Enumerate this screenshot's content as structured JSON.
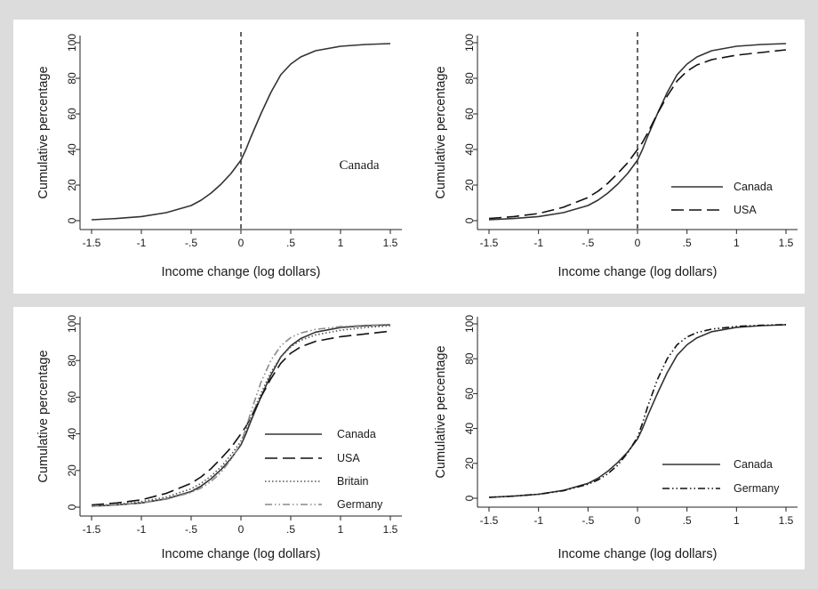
{
  "figure": {
    "background": "#dcdcdc",
    "plot_background": "#ffffff"
  },
  "chart_data": [
    {
      "type": "line",
      "xlabel": "Income change (log dollars)",
      "ylabel": "Cumulative percentage",
      "xlim": [
        -1.5,
        1.5
      ],
      "ylim": [
        0,
        100
      ],
      "xticks": [
        "-1.5",
        "-1",
        "-.5",
        "0",
        ".5",
        "1",
        "1.5"
      ],
      "yticks": [
        "0",
        "20",
        "40",
        "60",
        "80",
        "100"
      ],
      "vline_x": 0,
      "annotation": "Canada",
      "legend": [],
      "series": [
        {
          "name": "Canada",
          "style": "solid",
          "color": "#333333",
          "x": [
            -1.5,
            -1.25,
            -1.0,
            -0.75,
            -0.5,
            -0.4,
            -0.3,
            -0.2,
            -0.1,
            0,
            0.05,
            0.1,
            0.2,
            0.3,
            0.4,
            0.5,
            0.6,
            0.75,
            1.0,
            1.25,
            1.5
          ],
          "y": [
            0.5,
            1.2,
            2.3,
            4.5,
            8.5,
            11.5,
            15.5,
            20.5,
            26.5,
            34,
            40,
            47,
            60,
            72,
            82,
            88,
            92,
            95.5,
            98,
            99,
            99.5
          ]
        }
      ]
    },
    {
      "type": "line",
      "xlabel": "Income change (log dollars)",
      "ylabel": "Cumulative percentage",
      "xlim": [
        -1.5,
        1.5
      ],
      "ylim": [
        0,
        100
      ],
      "xticks": [
        "-1.5",
        "-1",
        "-.5",
        "0",
        ".5",
        "1",
        "1.5"
      ],
      "yticks": [
        "0",
        "20",
        "40",
        "60",
        "80",
        "100"
      ],
      "vline_x": 0,
      "legend": [
        "Canada",
        "USA"
      ],
      "series": [
        {
          "name": "Canada",
          "style": "solid",
          "color": "#333333",
          "x": [
            -1.5,
            -1.25,
            -1.0,
            -0.75,
            -0.5,
            -0.4,
            -0.3,
            -0.2,
            -0.1,
            0,
            0.05,
            0.1,
            0.2,
            0.3,
            0.4,
            0.5,
            0.6,
            0.75,
            1.0,
            1.25,
            1.5
          ],
          "y": [
            0.5,
            1.2,
            2.3,
            4.5,
            8.5,
            11.5,
            15.5,
            20.5,
            26.5,
            34,
            40,
            47,
            60,
            72,
            82,
            88,
            92,
            95.5,
            98,
            99,
            99.5
          ]
        },
        {
          "name": "USA",
          "style": "longdash",
          "color": "#111111",
          "x": [
            -1.5,
            -1.25,
            -1.0,
            -0.75,
            -0.5,
            -0.4,
            -0.3,
            -0.2,
            -0.1,
            0,
            0.05,
            0.1,
            0.2,
            0.3,
            0.4,
            0.5,
            0.6,
            0.75,
            1.0,
            1.25,
            1.5
          ],
          "y": [
            1.2,
            2.3,
            4,
            7.5,
            13,
            16.5,
            21,
            26.5,
            32.5,
            40,
            44,
            49,
            60,
            70,
            78.5,
            84,
            87.5,
            90.5,
            93,
            94.5,
            96
          ]
        }
      ]
    },
    {
      "type": "line",
      "xlabel": "Income change (log dollars)",
      "ylabel": "Cumulative percentage",
      "xlim": [
        -1.5,
        1.5
      ],
      "ylim": [
        0,
        100
      ],
      "xticks": [
        "-1.5",
        "-1",
        "-.5",
        "0",
        ".5",
        "1",
        "1.5"
      ],
      "yticks": [
        "0",
        "20",
        "40",
        "60",
        "80",
        "100"
      ],
      "legend": [
        "Canada",
        "USA",
        "Britain",
        "Germany"
      ],
      "series": [
        {
          "name": "Canada",
          "style": "solid",
          "color": "#333333",
          "x": [
            -1.5,
            -1.25,
            -1.0,
            -0.75,
            -0.5,
            -0.4,
            -0.3,
            -0.2,
            -0.1,
            0,
            0.05,
            0.1,
            0.2,
            0.3,
            0.4,
            0.5,
            0.6,
            0.75,
            1.0,
            1.25,
            1.5
          ],
          "y": [
            0.5,
            1.2,
            2.3,
            4.5,
            8.5,
            11.5,
            15.5,
            20.5,
            26.5,
            34,
            40,
            47,
            60,
            72,
            82,
            88,
            92,
            95.5,
            98,
            99,
            99.5
          ]
        },
        {
          "name": "USA",
          "style": "longdash",
          "color": "#111111",
          "x": [
            -1.5,
            -1.25,
            -1.0,
            -0.75,
            -0.5,
            -0.4,
            -0.3,
            -0.2,
            -0.1,
            0,
            0.05,
            0.1,
            0.2,
            0.3,
            0.4,
            0.5,
            0.6,
            0.75,
            1.0,
            1.25,
            1.5
          ],
          "y": [
            1.2,
            2.3,
            4,
            7.5,
            13,
            16.5,
            21,
            26.5,
            32.5,
            40,
            44,
            49,
            60,
            70,
            78.5,
            84,
            87.5,
            90.5,
            93,
            94.5,
            96
          ]
        },
        {
          "name": "Britain",
          "style": "dotted",
          "color": "#555555",
          "x": [
            -1.5,
            -1.25,
            -1.0,
            -0.75,
            -0.5,
            -0.4,
            -0.3,
            -0.2,
            -0.1,
            0,
            0.05,
            0.1,
            0.2,
            0.3,
            0.4,
            0.5,
            0.6,
            0.75,
            1.0,
            1.25,
            1.5
          ],
          "y": [
            0.8,
            1.6,
            3,
            5.5,
            10,
            13,
            17,
            22,
            28.5,
            36,
            42,
            49,
            62,
            73.5,
            82,
            87.5,
            91,
            94,
            96.5,
            98,
            99
          ]
        },
        {
          "name": "Germany",
          "style": "dashdotdot",
          "color": "#8a8a8a",
          "x": [
            -1.5,
            -1.25,
            -1.0,
            -0.75,
            -0.5,
            -0.4,
            -0.3,
            -0.2,
            -0.1,
            0,
            0.05,
            0.1,
            0.2,
            0.3,
            0.4,
            0.5,
            0.6,
            0.75,
            1.0,
            1.25,
            1.5
          ],
          "y": [
            0.5,
            1.2,
            2.3,
            4.3,
            8,
            10.5,
            14,
            19,
            26,
            35,
            43,
            52,
            68,
            80,
            88,
            92.5,
            95,
            97,
            98.5,
            99.2,
            99.6
          ]
        }
      ]
    },
    {
      "type": "line",
      "xlabel": "Income change (log dollars)",
      "ylabel": "Cumulative percentage",
      "xlim": [
        -1.5,
        1.5
      ],
      "ylim": [
        0,
        100
      ],
      "xticks": [
        "-1.5",
        "-1",
        "-.5",
        "0",
        ".5",
        "1",
        "1.5"
      ],
      "yticks": [
        "0",
        "20",
        "40",
        "60",
        "80",
        "100"
      ],
      "legend": [
        "Canada",
        "Germany"
      ],
      "series": [
        {
          "name": "Canada",
          "style": "solid",
          "color": "#333333",
          "x": [
            -1.5,
            -1.25,
            -1.0,
            -0.75,
            -0.5,
            -0.4,
            -0.3,
            -0.2,
            -0.1,
            0,
            0.05,
            0.1,
            0.2,
            0.3,
            0.4,
            0.5,
            0.6,
            0.75,
            1.0,
            1.25,
            1.5
          ],
          "y": [
            0.5,
            1.2,
            2.3,
            4.5,
            8.5,
            11.5,
            15.5,
            20.5,
            26.5,
            34,
            40,
            47,
            60,
            72,
            82,
            88,
            92,
            95.5,
            98,
            99,
            99.5
          ]
        },
        {
          "name": "Germany",
          "style": "dashdotdot",
          "color": "#111111",
          "x": [
            -1.5,
            -1.25,
            -1.0,
            -0.75,
            -0.5,
            -0.4,
            -0.3,
            -0.2,
            -0.1,
            0,
            0.05,
            0.1,
            0.2,
            0.3,
            0.4,
            0.5,
            0.6,
            0.75,
            1.0,
            1.25,
            1.5
          ],
          "y": [
            0.5,
            1.2,
            2.3,
            4.3,
            8,
            10.5,
            14,
            19,
            26,
            35,
            43,
            52,
            68,
            80,
            88,
            92.5,
            95,
            97,
            98.5,
            99.2,
            99.6
          ]
        }
      ]
    }
  ]
}
